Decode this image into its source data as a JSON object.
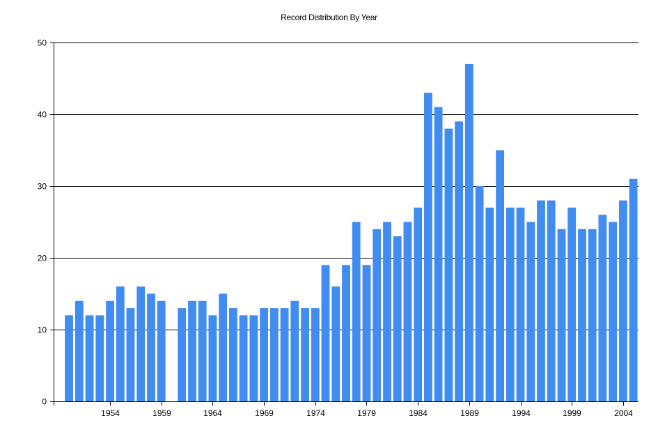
{
  "chart_data": {
    "type": "bar",
    "title": "Record Distribution By Year",
    "xlabel": "",
    "ylabel": "",
    "ylim": [
      0,
      50
    ],
    "yticks": [
      0,
      10,
      20,
      30,
      40,
      50
    ],
    "xticks": [
      1954,
      1959,
      1964,
      1969,
      1974,
      1979,
      1984,
      1989,
      1994,
      1999,
      2004
    ],
    "x_range": [
      1949,
      2005
    ],
    "grid": "horizontal",
    "legend": null,
    "bar_color": "#418CF0",
    "categories": [
      1950,
      1951,
      1952,
      1953,
      1954,
      1955,
      1956,
      1957,
      1958,
      1959,
      1960,
      1961,
      1962,
      1963,
      1964,
      1965,
      1966,
      1967,
      1968,
      1969,
      1970,
      1971,
      1972,
      1973,
      1974,
      1975,
      1976,
      1977,
      1978,
      1979,
      1980,
      1981,
      1982,
      1983,
      1984,
      1985,
      1986,
      1987,
      1988,
      1989,
      1990,
      1991,
      1992,
      1993,
      1994,
      1995,
      1996,
      1997,
      1998,
      1999,
      2000,
      2001,
      2002,
      2003,
      2004,
      2005
    ],
    "values": [
      12,
      14,
      12,
      12,
      14,
      16,
      13,
      16,
      15,
      14,
      0,
      13,
      14,
      14,
      12,
      15,
      13,
      12,
      12,
      13,
      13,
      13,
      14,
      13,
      13,
      19,
      16,
      19,
      25,
      19,
      24,
      25,
      23,
      25,
      27,
      43,
      41,
      38,
      39,
      47,
      30,
      27,
      35,
      27,
      27,
      25,
      28,
      28,
      24,
      27,
      24,
      24,
      26,
      25,
      28,
      31
    ]
  }
}
